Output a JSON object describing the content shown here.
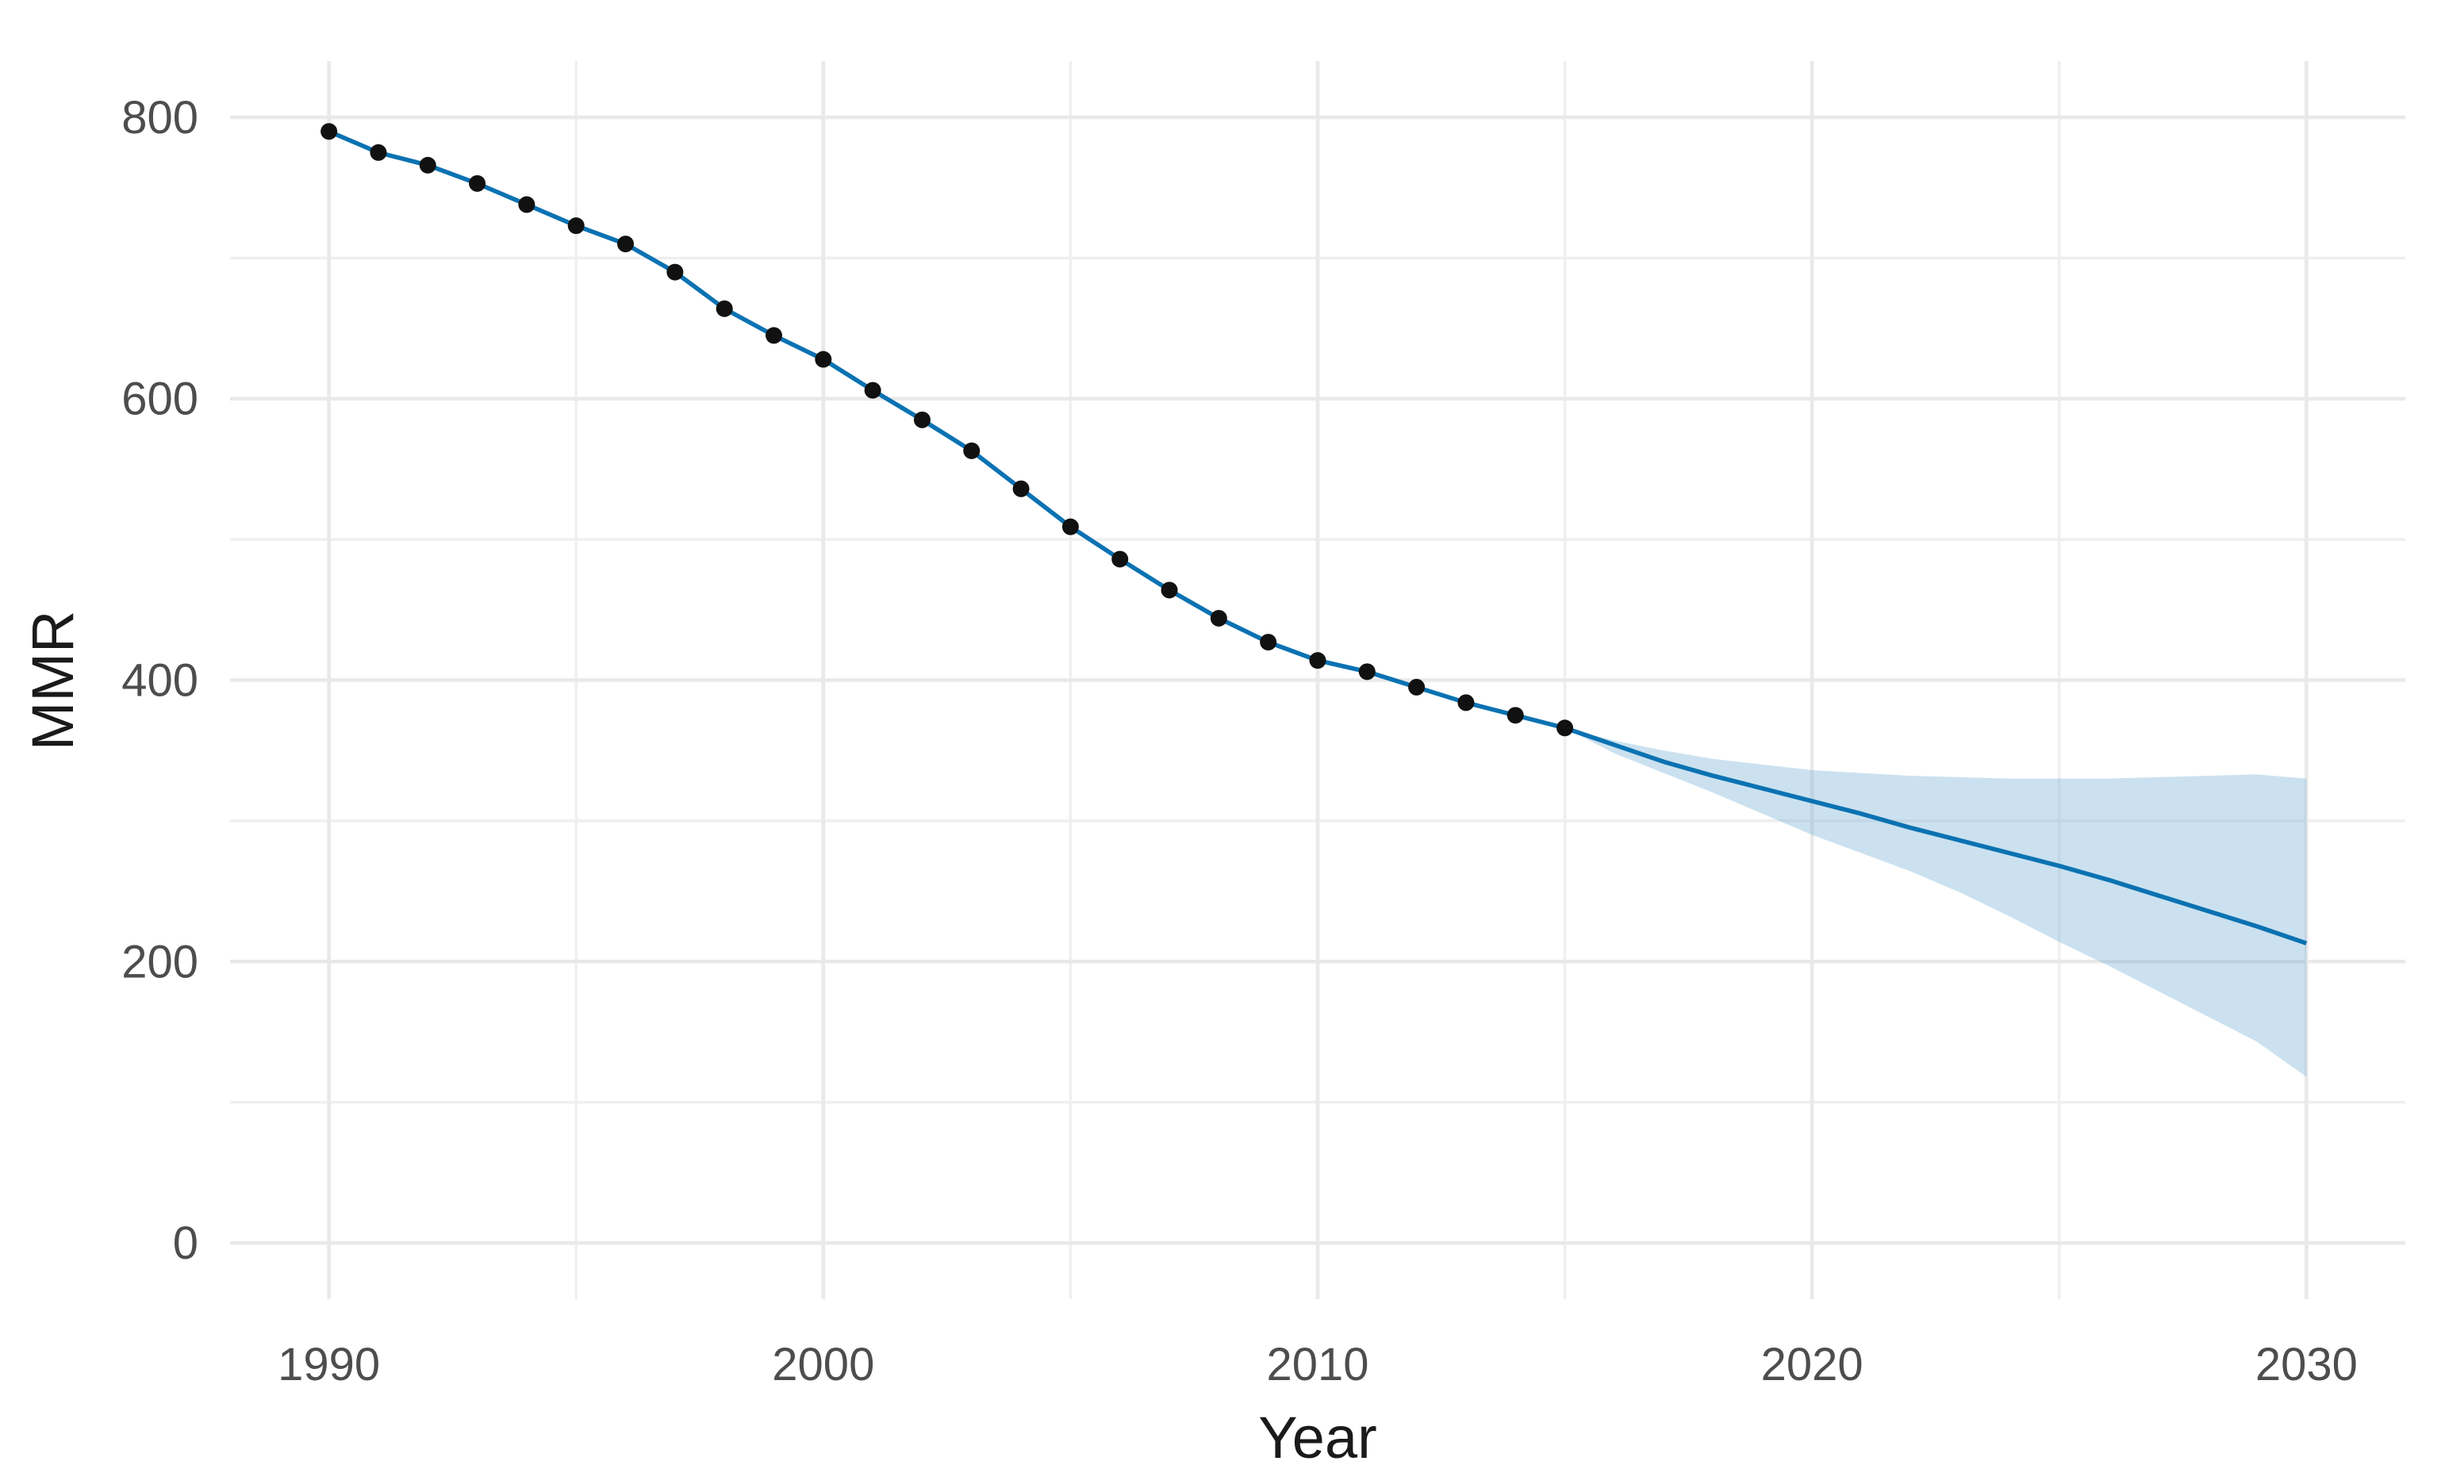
{
  "figure": {
    "background_color": "#ffffff",
    "type_note": "ggplot-style line chart with observed points and projected line with uncertainty ribbon"
  },
  "chart_data": {
    "type": "line",
    "title": "",
    "xlabel": "Year",
    "ylabel": "MMR",
    "x_ticks": [
      1990,
      2000,
      2010,
      2020,
      2030
    ],
    "x_minor_ticks": [
      1995,
      2005,
      2015,
      2025
    ],
    "y_ticks": [
      0,
      200,
      400,
      600,
      800
    ],
    "y_minor_ticks": [
      100,
      300,
      500,
      700
    ],
    "xlim": [
      1988,
      2032
    ],
    "ylim": [
      -40,
      840
    ],
    "grid": true,
    "legend": "none",
    "colors": {
      "line": "#0b72b2",
      "point": "#111111",
      "ribbon_fill": "#6fabd4",
      "ribbon_opacity": 0.36,
      "grid_major": "#e9e9e9",
      "grid_minor": "#efefef",
      "tick_text": "#4d4d4d",
      "axis_title_text": "#1a1a1a"
    },
    "series": [
      {
        "name": "observed",
        "mark": "points+line",
        "x": [
          1990,
          1991,
          1992,
          1993,
          1994,
          1995,
          1996,
          1997,
          1998,
          1999,
          2000,
          2001,
          2002,
          2003,
          2004,
          2005,
          2006,
          2007,
          2008,
          2009,
          2010,
          2011,
          2012,
          2013,
          2014,
          2015
        ],
        "y": [
          790,
          775,
          766,
          753,
          738,
          723,
          710,
          690,
          664,
          645,
          628,
          606,
          585,
          563,
          536,
          509,
          486,
          464,
          444,
          427,
          414,
          406,
          395,
          384,
          375,
          366
        ]
      },
      {
        "name": "projection",
        "mark": "line",
        "x": [
          2015,
          2016,
          2017,
          2018,
          2019,
          2020,
          2021,
          2022,
          2023,
          2024,
          2025,
          2026,
          2027,
          2028,
          2029,
          2030
        ],
        "y": [
          366,
          354,
          342,
          332,
          323,
          314,
          305,
          295,
          286,
          277,
          268,
          258,
          247,
          236,
          225,
          213
        ]
      },
      {
        "name": "credible-interval",
        "mark": "ribbon",
        "x": [
          2015,
          2016,
          2017,
          2018,
          2019,
          2020,
          2021,
          2022,
          2023,
          2024,
          2025,
          2026,
          2027,
          2028,
          2029,
          2030
        ],
        "upper": [
          366,
          357,
          350,
          344,
          340,
          336,
          334,
          332,
          331,
          330,
          330,
          330,
          331,
          332,
          333,
          330
        ],
        "lower": [
          366,
          348,
          334,
          320,
          305,
          290,
          277,
          264,
          249,
          232,
          214,
          197,
          179,
          161,
          143,
          118
        ]
      }
    ]
  }
}
